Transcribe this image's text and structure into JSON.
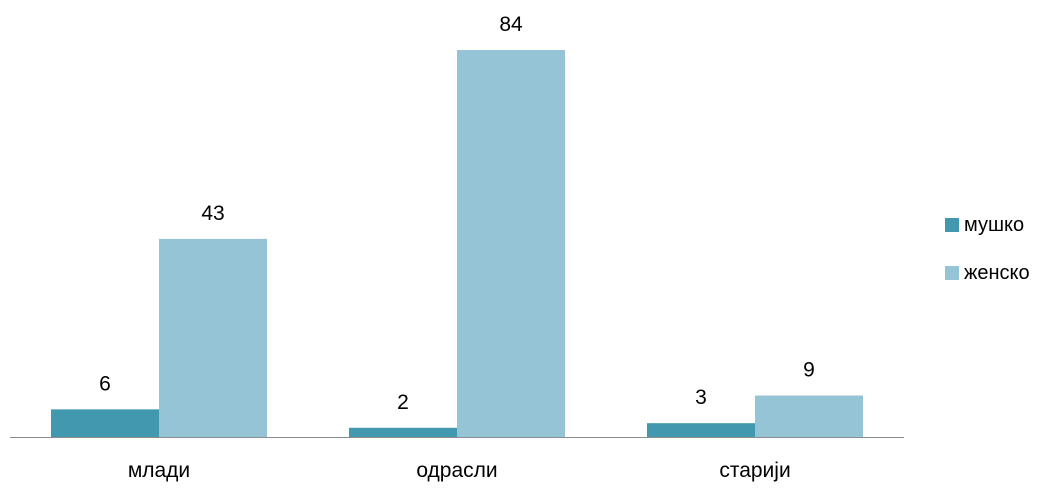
{
  "chart_data": {
    "type": "bar",
    "categories": [
      "млади",
      "одрасли",
      "старији"
    ],
    "series": [
      {
        "name": "мушко",
        "values": [
          6,
          2,
          3
        ],
        "color": "#4198AF"
      },
      {
        "name": "женско",
        "values": [
          43,
          84,
          9
        ],
        "color": "#94C4D5"
      }
    ],
    "title": "",
    "xlabel": "",
    "ylabel": "",
    "ylim": [
      0,
      84
    ],
    "grid": false,
    "legend_position": "right",
    "data_labels": true,
    "axis_color": "#8c8c8c"
  }
}
